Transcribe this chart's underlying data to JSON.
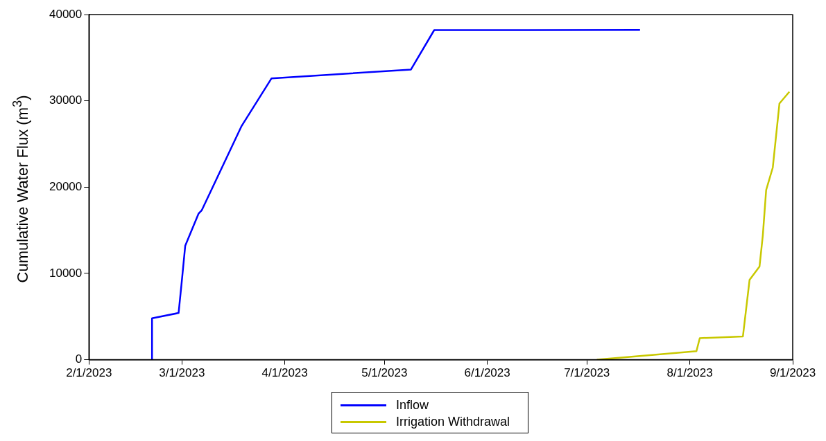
{
  "chart_data": {
    "type": "line",
    "ylabel": "Cumulative Water Flux (m$^{3}$)",
    "series": [
      {
        "name": "Inflow",
        "color": "#0000ff",
        "x": [
          "2023-02-20",
          "2023-02-20",
          "2023-02-28",
          "2023-03-01",
          "2023-03-02",
          "2023-03-06",
          "2023-03-07",
          "2023-03-19",
          "2023-03-28",
          "2023-05-09",
          "2023-05-16",
          "2023-07-17"
        ],
        "values": [
          0,
          4810,
          5420,
          9220,
          13210,
          16930,
          17340,
          27110,
          32620,
          33640,
          38210,
          38230
        ]
      },
      {
        "name": "Irrigation Withdrawal",
        "color": "#c8c800",
        "x": [
          "2023-07-04",
          "2023-08-03",
          "2023-08-04",
          "2023-08-17",
          "2023-08-19",
          "2023-08-22",
          "2023-08-23",
          "2023-08-24",
          "2023-08-26",
          "2023-08-28",
          "2023-08-31"
        ],
        "values": [
          0,
          990,
          2500,
          2700,
          9250,
          10800,
          14430,
          19670,
          22280,
          29700,
          31070
        ]
      }
    ],
    "xlim": [
      "2023-02-01",
      "2023-09-01"
    ],
    "xticks": [
      {
        "value": "2023-02-01",
        "label": "2/1/2023"
      },
      {
        "value": "2023-03-01",
        "label": "3/1/2023"
      },
      {
        "value": "2023-04-01",
        "label": "4/1/2023"
      },
      {
        "value": "2023-05-01",
        "label": "5/1/2023"
      },
      {
        "value": "2023-06-01",
        "label": "6/1/2023"
      },
      {
        "value": "2023-07-01",
        "label": "7/1/2023"
      },
      {
        "value": "2023-08-01",
        "label": "8/1/2023"
      },
      {
        "value": "2023-09-01",
        "label": "9/1/2023"
      }
    ],
    "ylim": [
      0,
      40000
    ],
    "yticks": [
      0,
      10000,
      20000,
      30000,
      40000
    ],
    "legend": "bottom",
    "marker": "none",
    "line_style": "solid"
  }
}
